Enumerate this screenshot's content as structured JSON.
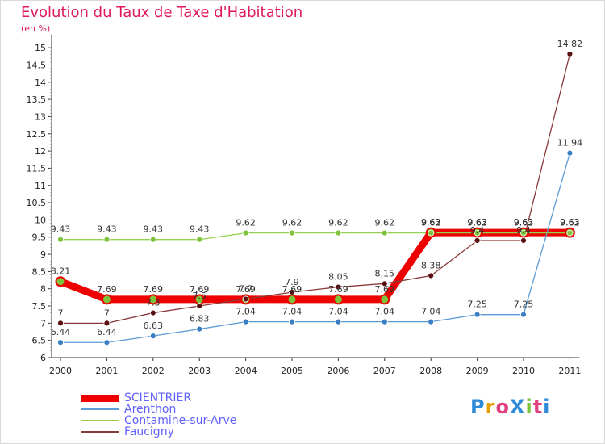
{
  "chart_data": {
    "type": "line",
    "title": "Evolution du Taux de Taxe d'Habitation",
    "unit": "(en %)",
    "x": [
      "2000",
      "2001",
      "2002",
      "2003",
      "2004",
      "2005",
      "2006",
      "2007",
      "2008",
      "2009",
      "2010",
      "2011"
    ],
    "ylim": [
      6,
      15.2
    ],
    "yticks": [
      "6",
      "6.5",
      "7",
      "7.5",
      "8",
      "8.5",
      "9",
      "9.5",
      "10",
      "10.5",
      "11",
      "11.5",
      "12",
      "12.5",
      "13",
      "13.5",
      "14",
      "14.5",
      "15"
    ],
    "grid": false,
    "legend_position": "bottom-left",
    "series": [
      {
        "name": "SCIENTRIER",
        "color": "#ee0000",
        "marker": "#e8a000",
        "values": [
          8.21,
          7.69,
          7.69,
          7.69,
          7.69,
          7.69,
          7.69,
          7.69,
          9.63,
          9.63,
          9.63,
          9.63
        ],
        "labels": [
          "8.21",
          "7.69",
          "7.69",
          "7.69",
          "7.69",
          "7.69",
          "7.69",
          "7.69",
          "9.63",
          "9.63",
          "9.63",
          "9.63"
        ]
      },
      {
        "name": "Arenthon",
        "color": "#5b9bd5",
        "marker": "#3a7fc4",
        "values": [
          6.44,
          6.44,
          6.63,
          6.83,
          7.04,
          7.04,
          7.04,
          7.04,
          7.04,
          7.25,
          7.25,
          11.94
        ],
        "labels": [
          "6.44",
          "6.44",
          "6.63",
          "6.83",
          "7.04",
          "7.04",
          "7.04",
          "7.04",
          "7.04",
          "7.25",
          "7.25",
          "11.94"
        ]
      },
      {
        "name": "Contamine-sur-Arve",
        "color": "#92d050",
        "marker": "#7cc23a",
        "values": [
          9.43,
          9.43,
          9.43,
          9.43,
          9.62,
          9.62,
          9.62,
          9.62,
          9.62,
          9.62,
          9.62,
          9.62
        ],
        "labels": [
          "9.43",
          "9.43",
          "9.43",
          "9.43",
          "9.62",
          "9.62",
          "9.62",
          "9.62",
          "9.62",
          "9.62",
          "9.62",
          "9.62"
        ]
      },
      {
        "name": "Faucigny",
        "color": "#8b3a3a",
        "marker": "#5a1010",
        "values": [
          7,
          7,
          7.3,
          7.5,
          7.7,
          7.9,
          8.05,
          8.15,
          8.38,
          9.4,
          9.4,
          14.82
        ],
        "labels": [
          "7",
          "7",
          "7.3",
          "7.5",
          "7.7",
          "7.9",
          "8.05",
          "8.15",
          "8.38",
          "9.4",
          "9.4",
          "14.82"
        ]
      }
    ]
  },
  "logo": {
    "text": "ProXiti"
  }
}
